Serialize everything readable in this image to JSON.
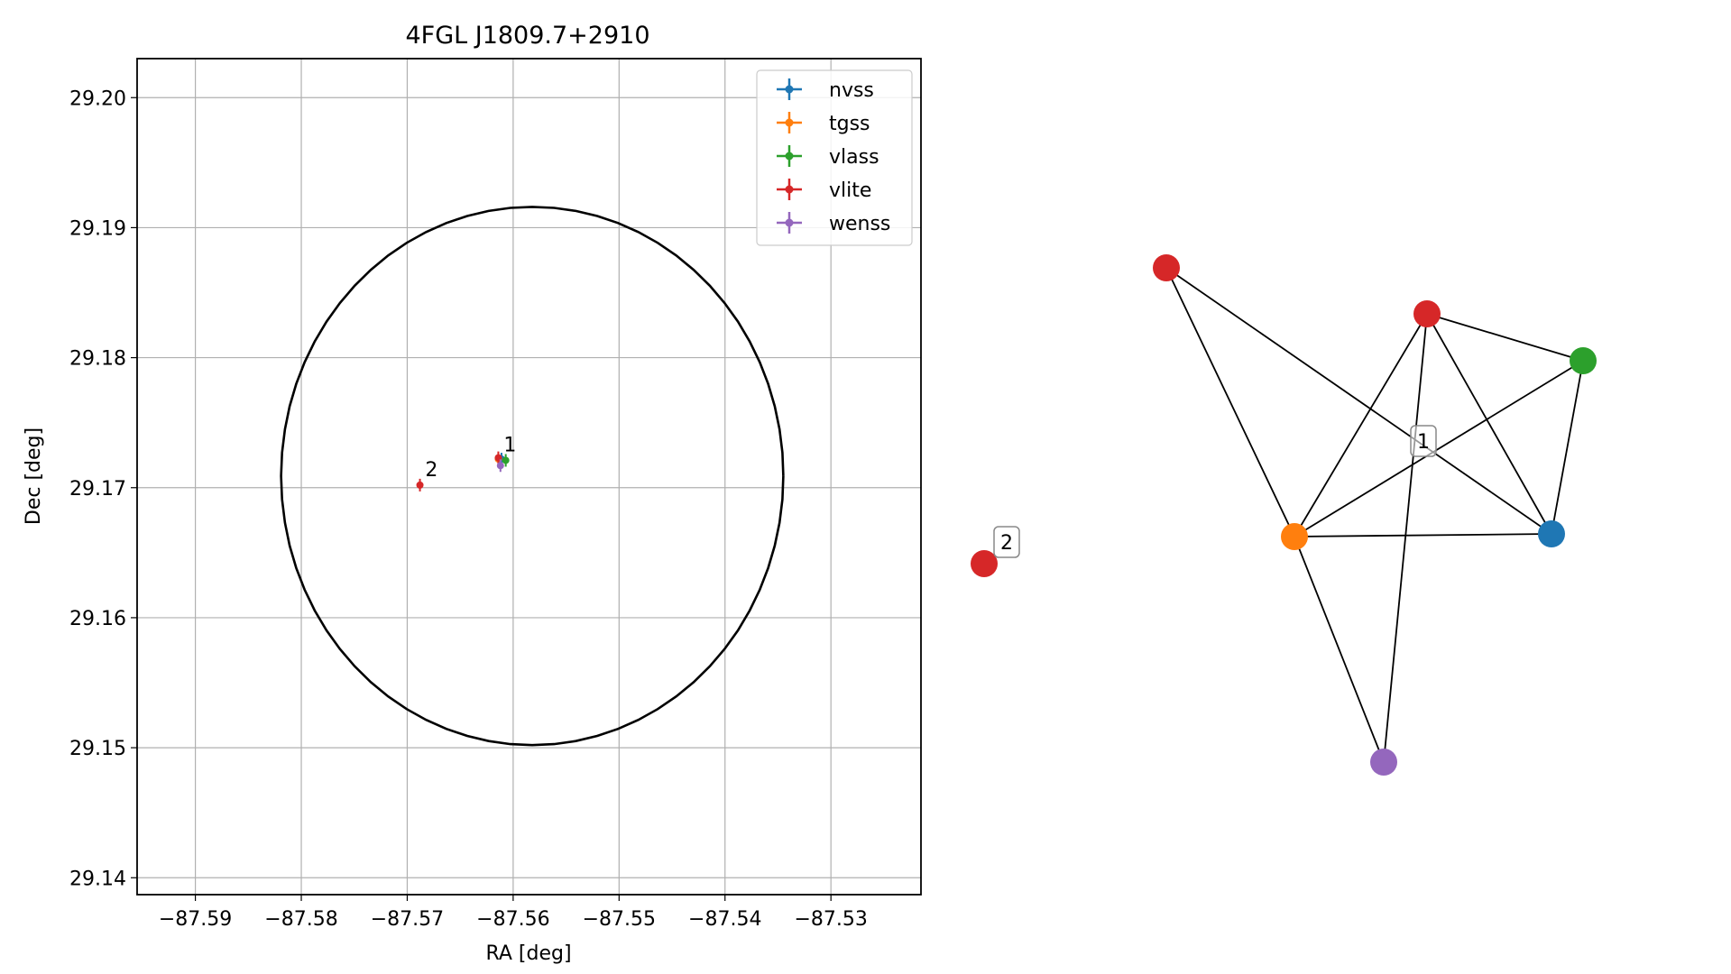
{
  "chart_data": [
    {
      "type": "scatter",
      "title": "4FGL J1809.7+2910",
      "xlabel": "RA [deg]",
      "ylabel": "Dec [deg]",
      "xlim": [
        -87.5955,
        -87.5215
      ],
      "ylim": [
        29.1387,
        29.203
      ],
      "xticks": [
        -87.59,
        -87.58,
        -87.57,
        -87.56,
        -87.55,
        -87.54,
        -87.53
      ],
      "xtick_labels": [
        "−87.59",
        "−87.58",
        "−87.57",
        "−87.56",
        "−87.55",
        "−87.54",
        "−87.53"
      ],
      "yticks": [
        29.14,
        29.15,
        29.16,
        29.17,
        29.18,
        29.19,
        29.2
      ],
      "ytick_labels": [
        "29.14",
        "29.15",
        "29.16",
        "29.17",
        "29.18",
        "29.19",
        "29.20"
      ],
      "grid": true,
      "legend_position": "top-right",
      "circle": {
        "center_ra": -87.5582,
        "center_dec": 29.1709,
        "radius_dec": 0.0207
      },
      "series": [
        {
          "name": "nvss",
          "color": "#1f77b4",
          "points": [
            {
              "x": -87.5611,
              "y": 29.1722
            }
          ]
        },
        {
          "name": "tgss",
          "color": "#ff7f0e",
          "points": [
            {
              "x": -87.5614,
              "y": 29.1722
            }
          ]
        },
        {
          "name": "vlass",
          "color": "#2ca02c",
          "points": [
            {
              "x": -87.5607,
              "y": 29.1721
            }
          ]
        },
        {
          "name": "vlite",
          "color": "#d62728",
          "points": [
            {
              "x": -87.5614,
              "y": 29.1723
            },
            {
              "x": -87.5688,
              "y": 29.1702
            }
          ]
        },
        {
          "name": "wenss",
          "color": "#9467bd",
          "points": [
            {
              "x": -87.5612,
              "y": 29.1717
            }
          ]
        }
      ],
      "annotations": [
        {
          "text": "1",
          "x": -87.5609,
          "y": 29.1728
        },
        {
          "text": "2",
          "x": -87.5683,
          "y": 29.1709
        }
      ]
    },
    {
      "type": "network",
      "nodes": [
        {
          "id": "vlite_a",
          "color": "#d62728"
        },
        {
          "id": "vlite_b",
          "color": "#d62728"
        },
        {
          "id": "vlass",
          "color": "#2ca02c"
        },
        {
          "id": "nvss",
          "color": "#1f77b4"
        },
        {
          "id": "tgss",
          "color": "#ff7f0e"
        },
        {
          "id": "wenss",
          "color": "#9467bd"
        },
        {
          "id": "vlite_c",
          "color": "#d62728"
        }
      ],
      "edges": [
        [
          "vlite_a",
          "tgss"
        ],
        [
          "vlite_a",
          "nvss"
        ],
        [
          "vlite_b",
          "vlass"
        ],
        [
          "vlite_b",
          "tgss"
        ],
        [
          "vlite_b",
          "nvss"
        ],
        [
          "vlite_b",
          "wenss"
        ],
        [
          "vlass",
          "nvss"
        ],
        [
          "vlass",
          "tgss"
        ],
        [
          "tgss",
          "nvss"
        ],
        [
          "tgss",
          "wenss"
        ]
      ],
      "labels": [
        {
          "text": "1"
        },
        {
          "text": "2"
        }
      ]
    }
  ]
}
